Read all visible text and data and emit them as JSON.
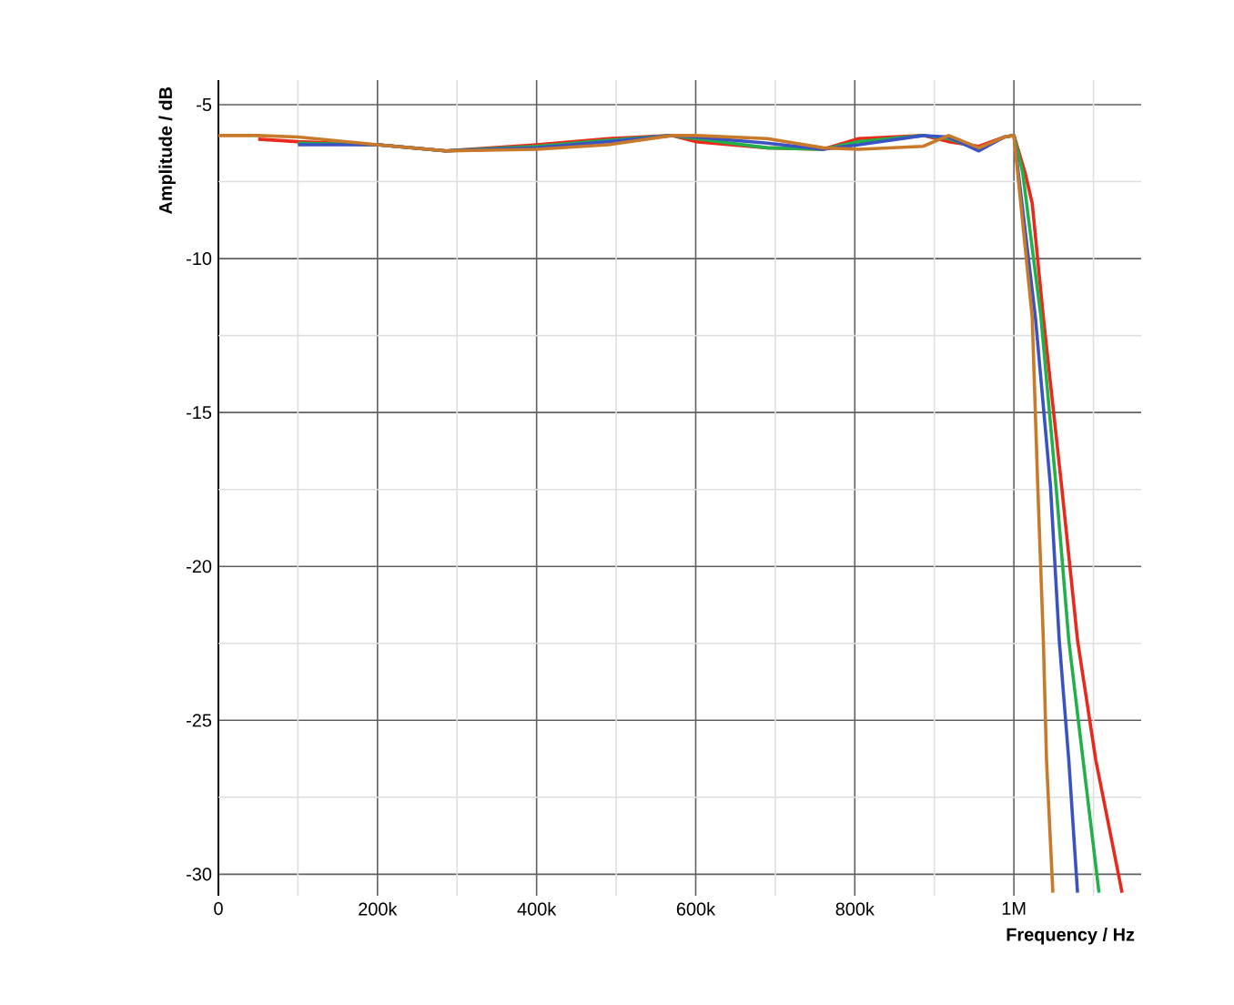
{
  "chart_data": {
    "type": "line",
    "xlabel": "Frequency / Hz",
    "ylabel": "Amplitude / dB",
    "xlim": [
      0,
      1160000
    ],
    "ylim": [
      -30.7,
      -4.2
    ],
    "xticks": [
      0,
      {
        "value": 100000,
        "label": null
      },
      {
        "value": 200000,
        "label": "200k"
      },
      {
        "value": 300000,
        "label": null
      },
      {
        "value": 400000,
        "label": "400k"
      },
      {
        "value": 500000,
        "label": null
      },
      {
        "value": 600000,
        "label": "600k"
      },
      {
        "value": 700000,
        "label": null
      },
      {
        "value": 800000,
        "label": "800k"
      },
      {
        "value": 900000,
        "label": null
      },
      {
        "value": 1000000,
        "label": "1M"
      },
      {
        "value": 1100000,
        "label": null
      }
    ],
    "yticks": [
      -5,
      {
        "value": -7.5,
        "label": null
      },
      -10,
      {
        "value": -12.5,
        "label": null
      },
      -15,
      {
        "value": -17.5,
        "label": null
      },
      -20,
      {
        "value": -22.5,
        "label": null
      },
      -25,
      {
        "value": -27.5,
        "label": null
      },
      -30
    ],
    "grid": true,
    "marker": "none",
    "line_style": "solid",
    "series": [
      {
        "color": "#e8291c",
        "x": [
          50000,
          100000,
          200000,
          286000,
          400000,
          490000,
          570000,
          600000,
          690000,
          760000,
          805000,
          886000,
          918000,
          956000,
          988000,
          1000000,
          1014000,
          1023000,
          1037000,
          1060000,
          1080000,
          1103000,
          1136000
        ],
        "values": [
          -6.12,
          -6.2,
          -6.3,
          -6.5,
          -6.3,
          -6.1,
          -6.0,
          -6.2,
          -6.4,
          -6.45,
          -6.1,
          -6.0,
          -6.2,
          -6.35,
          -6.05,
          -6.0,
          -7.2,
          -8.2,
          -11.9,
          -17.4,
          -22.4,
          -26.3,
          -30.6
        ]
      },
      {
        "color": "#22b04b",
        "x": [
          100000,
          200000,
          286000,
          400000,
          490000,
          570000,
          600000,
          690000,
          760000,
          805000,
          886000,
          918000,
          956000,
          988000,
          1000000,
          1011000,
          1034000,
          1053000,
          1069000,
          1087000,
          1107000
        ],
        "values": [
          -6.25,
          -6.3,
          -6.5,
          -6.35,
          -6.15,
          -6.0,
          -6.1,
          -6.4,
          -6.45,
          -6.2,
          -6.0,
          -6.1,
          -6.45,
          -6.05,
          -6.0,
          -7.2,
          -11.9,
          -17.4,
          -22.4,
          -26.3,
          -30.6
        ]
      },
      {
        "color": "#3a52c4",
        "x": [
          100000,
          200000,
          286000,
          400000,
          490000,
          570000,
          600000,
          690000,
          760000,
          805000,
          886000,
          918000,
          956000,
          988000,
          1000000,
          1027000,
          1046000,
          1057000,
          1069000,
          1080000
        ],
        "values": [
          -6.3,
          -6.3,
          -6.5,
          -6.4,
          -6.2,
          -6.0,
          -6.05,
          -6.25,
          -6.45,
          -6.3,
          -6.0,
          -6.05,
          -6.5,
          -6.05,
          -6.0,
          -11.9,
          -17.4,
          -22.4,
          -26.3,
          -30.6
        ]
      },
      {
        "color": "#c87a2a",
        "x": [
          0,
          50000,
          100000,
          200000,
          286000,
          400000,
          490000,
          570000,
          600000,
          690000,
          760000,
          805000,
          886000,
          918000,
          956000,
          988000,
          1000000,
          1023000,
          1030000,
          1037000,
          1041000,
          1049000
        ],
        "values": [
          -6.0,
          -6.0,
          -6.05,
          -6.3,
          -6.5,
          -6.45,
          -6.3,
          -6.0,
          -6.0,
          -6.1,
          -6.4,
          -6.45,
          -6.35,
          -6.0,
          -6.4,
          -6.05,
          -6.0,
          -11.9,
          -17.4,
          -22.4,
          -26.3,
          -30.6
        ]
      }
    ]
  }
}
